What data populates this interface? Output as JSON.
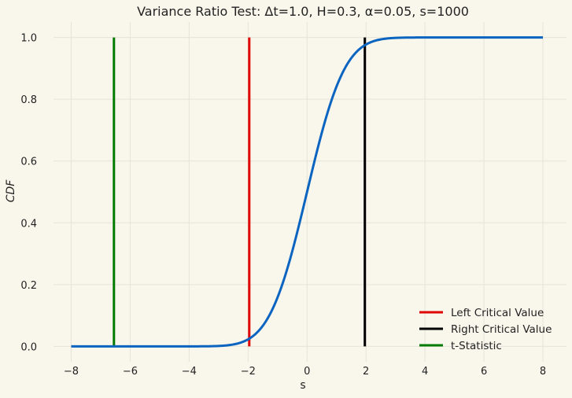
{
  "chart_data": {
    "type": "line",
    "title": "Variance Ratio Test: Δt=1.0, H=0.3, α=0.05, s=1000",
    "xlabel": "s",
    "ylabel": "CDF",
    "xlim": [
      -8.6,
      8.8
    ],
    "ylim": [
      -0.05,
      1.05
    ],
    "x_ticks": [
      -8,
      -6,
      -4,
      -2,
      0,
      2,
      4,
      6,
      8
    ],
    "x_tick_labels": [
      "−8",
      "−6",
      "−4",
      "−2",
      "0",
      "2",
      "4",
      "6",
      "8"
    ],
    "y_ticks": [
      0.0,
      0.2,
      0.4,
      0.6,
      0.8,
      1.0
    ],
    "y_tick_labels": [
      "0.0",
      "0.2",
      "0.4",
      "0.6",
      "0.8",
      "1.0"
    ],
    "grid": true,
    "legend_position": "lower-right",
    "curve": {
      "description": "normal CDF",
      "x_range": [
        -8,
        8
      ],
      "mean": 0,
      "std": 1,
      "color": "#0b64c0"
    },
    "vertical_lines": [
      {
        "name": "Left Critical Value",
        "x": -1.96,
        "color": "#e00000"
      },
      {
        "name": "Right Critical Value",
        "x": 1.96,
        "color": "#000000"
      },
      {
        "name": "t-Statistic",
        "x": -6.55,
        "color": "#007a00"
      }
    ]
  },
  "colors": {
    "background": "#f9f7ec",
    "grid": "#e6e4d8",
    "text": "#222222"
  }
}
